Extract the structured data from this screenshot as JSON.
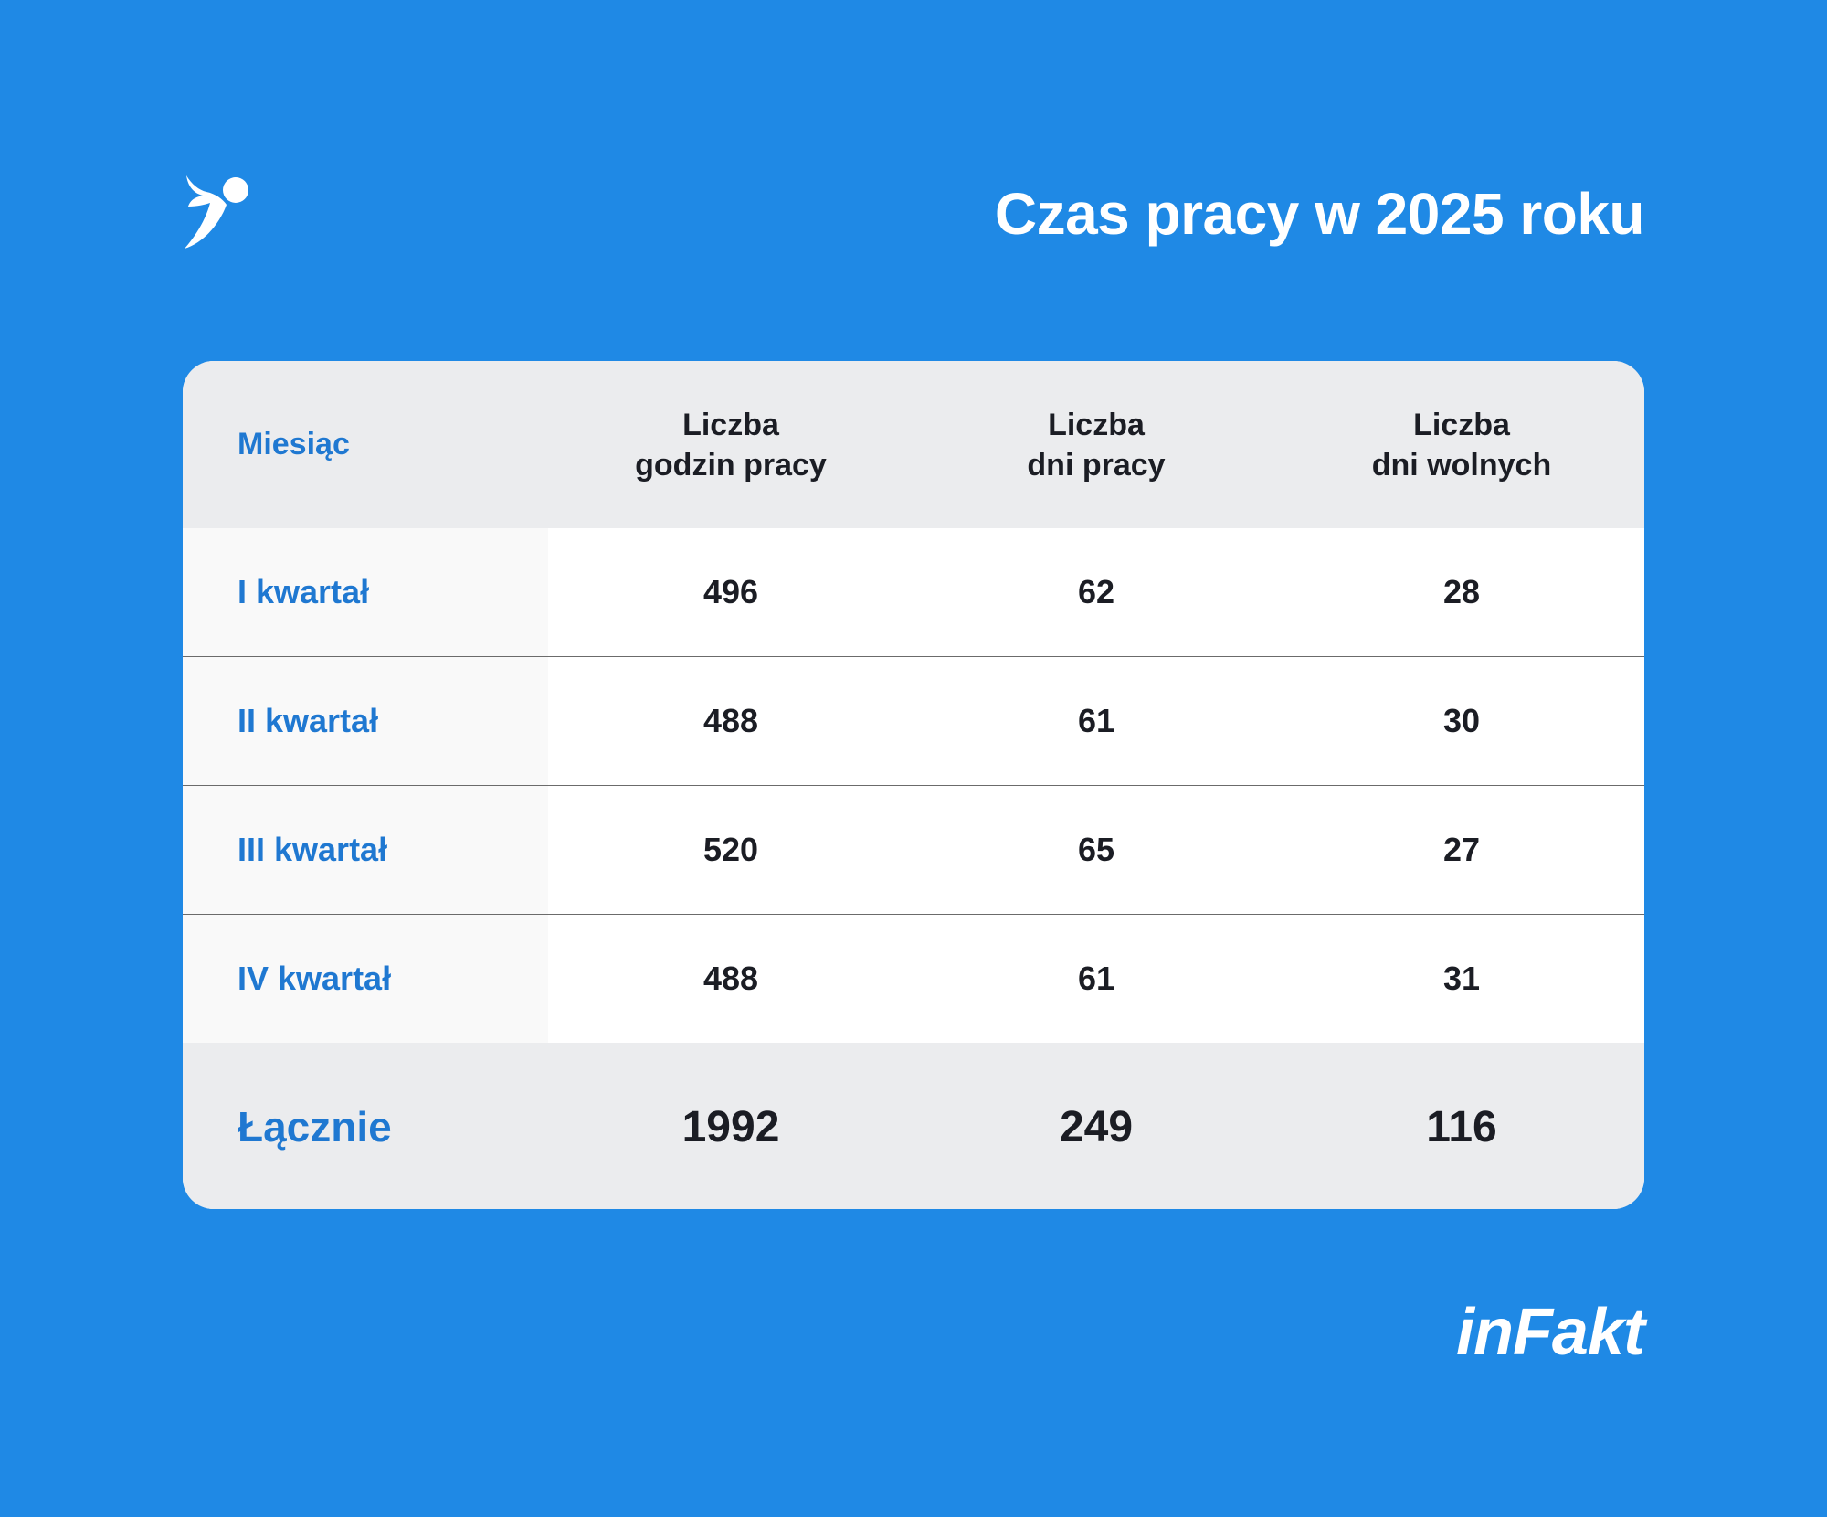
{
  "header": {
    "title": "Czas pracy w 2025 roku"
  },
  "table": {
    "columns": [
      "Miesiąc",
      "Liczba",
      "godzin pracy",
      "Liczba",
      "dni pracy",
      "Liczba",
      "dni wolnych"
    ],
    "col1": "Miesiąc",
    "col2": [
      "Liczba",
      "godzin pracy"
    ],
    "col3": [
      "Liczba",
      "dni pracy"
    ],
    "col4": [
      "Liczba",
      "dni wolnych"
    ],
    "rows": [
      {
        "label": "I kwartał",
        "hours": "496",
        "work_days": "62",
        "free_days": "28"
      },
      {
        "label": "II kwartał",
        "hours": "488",
        "work_days": "61",
        "free_days": "30"
      },
      {
        "label": "III kwartał",
        "hours": "520",
        "work_days": "65",
        "free_days": "27"
      },
      {
        "label": "IV kwartał",
        "hours": "488",
        "work_days": "61",
        "free_days": "31"
      }
    ],
    "total": {
      "label": "Łącznie",
      "hours": "1992",
      "work_days": "249",
      "free_days": "116"
    }
  },
  "brand": {
    "name": "inFakt",
    "icon": "winged-figure-logo-icon"
  },
  "colors": {
    "background": "#1f89e5",
    "accent_text": "#1f78d1",
    "dark_text": "#1b1d24",
    "header_bg": "#ebecee"
  }
}
